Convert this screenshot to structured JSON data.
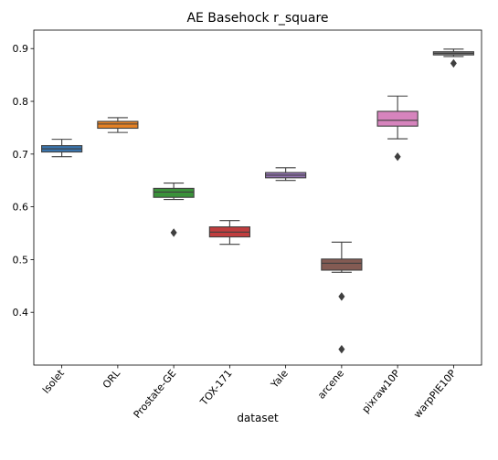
{
  "chart_data": {
    "type": "box",
    "title": "AE Basehock r_square",
    "xlabel": "dataset",
    "ylabel": "",
    "ylim": [
      0.3,
      0.935
    ],
    "yticks": [
      0.4,
      0.5,
      0.6,
      0.7,
      0.8,
      0.9
    ],
    "ytick_labels": [
      "0.4",
      "0.5",
      "0.6",
      "0.7",
      "0.8",
      "0.9"
    ],
    "categories": [
      "Isolet",
      "ORL",
      "Prostate-GE",
      "TOX-171",
      "Yale",
      "arcene",
      "pixraw10P",
      "warpPIE10P"
    ],
    "colors": [
      "#3a75ae",
      "#e48125",
      "#3a923a",
      "#c03d3e",
      "#9372b2",
      "#845b53",
      "#d684bd",
      "#7f7f7f"
    ],
    "boxes": [
      {
        "label": "Isolet",
        "whisker_low": 0.695,
        "q1": 0.704,
        "median": 0.71,
        "q3": 0.716,
        "whisker_high": 0.728,
        "outliers": []
      },
      {
        "label": "ORL",
        "whisker_low": 0.741,
        "q1": 0.749,
        "median": 0.757,
        "q3": 0.762,
        "whisker_high": 0.769,
        "outliers": []
      },
      {
        "label": "Prostate-GE",
        "whisker_low": 0.614,
        "q1": 0.618,
        "median": 0.628,
        "q3": 0.635,
        "whisker_high": 0.645,
        "outliers": [
          0.551
        ]
      },
      {
        "label": "TOX-171",
        "whisker_low": 0.529,
        "q1": 0.543,
        "median": 0.552,
        "q3": 0.562,
        "whisker_high": 0.574,
        "outliers": []
      },
      {
        "label": "Yale",
        "whisker_low": 0.65,
        "q1": 0.655,
        "median": 0.66,
        "q3": 0.665,
        "whisker_high": 0.674,
        "outliers": []
      },
      {
        "label": "arcene",
        "whisker_low": 0.476,
        "q1": 0.48,
        "median": 0.493,
        "q3": 0.501,
        "whisker_high": 0.533,
        "outliers": [
          0.43,
          0.33
        ]
      },
      {
        "label": "pixraw10P",
        "whisker_low": 0.729,
        "q1": 0.753,
        "median": 0.764,
        "q3": 0.781,
        "whisker_high": 0.81,
        "outliers": [
          0.695
        ]
      },
      {
        "label": "warpPIE10P",
        "whisker_low": 0.885,
        "q1": 0.888,
        "median": 0.891,
        "q3": 0.894,
        "whisker_high": 0.899,
        "outliers": [
          0.872
        ]
      }
    ],
    "grid": false,
    "legend": "none"
  }
}
